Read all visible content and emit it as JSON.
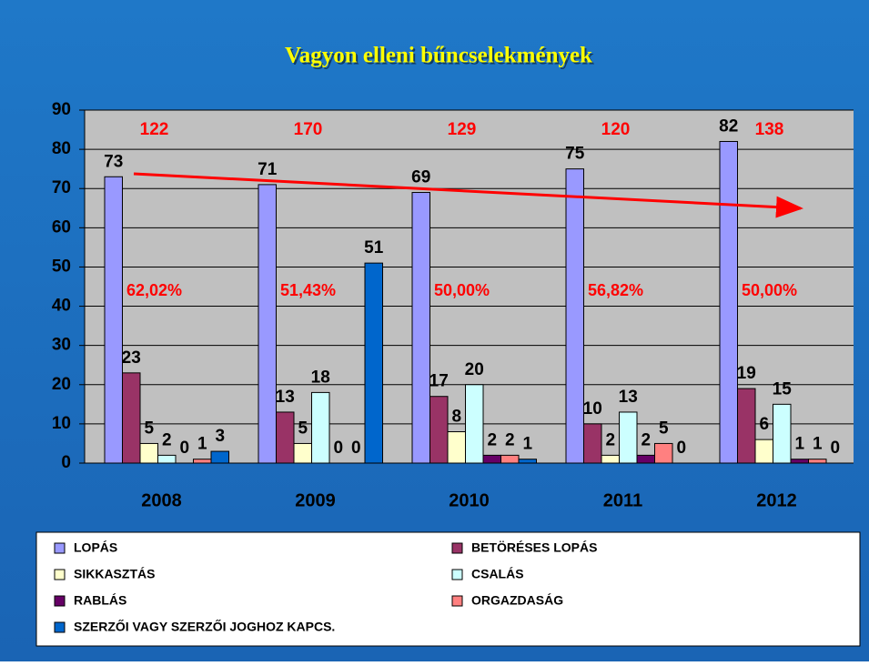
{
  "chart_data": {
    "type": "bar",
    "title": "Vagyon elleni bűncselekmények",
    "categories": [
      "2008",
      "2009",
      "2010",
      "2011",
      "2012"
    ],
    "series": [
      {
        "name": "LOPÁS",
        "color": "#9999ff",
        "values": [
          73,
          71,
          69,
          75,
          82
        ]
      },
      {
        "name": "BETÖRÉSES LOPÁS",
        "color": "#993366",
        "values": [
          23,
          13,
          17,
          10,
          19
        ]
      },
      {
        "name": "SIKKASZTÁS",
        "color": "#ffffcc",
        "values": [
          5,
          5,
          8,
          2,
          6
        ]
      },
      {
        "name": "CSALÁS",
        "color": "#ccffff",
        "values": [
          2,
          18,
          20,
          13,
          15
        ]
      },
      {
        "name": "RABLÁS",
        "color": "#660066",
        "values": [
          0,
          0,
          2,
          2,
          1
        ]
      },
      {
        "name": "ORGAZDASÁG",
        "color": "#ff8080",
        "values": [
          1,
          0,
          2,
          5,
          1
        ]
      },
      {
        "name": "SZERZŐI VAGY SZERZŐI JOGHOZ KAPCS.",
        "color": "#0066cc",
        "values": [
          3,
          51,
          1,
          0,
          0
        ]
      }
    ],
    "annotations": {
      "totals": [
        122,
        170,
        129,
        120,
        138
      ],
      "percentages": [
        "62,02%",
        "51,43%",
        "50,00%",
        "56,82%",
        "50,00%"
      ]
    },
    "ylim": [
      0,
      90
    ],
    "yticks": [
      0,
      10,
      20,
      30,
      40,
      50,
      60,
      70,
      80,
      90
    ],
    "grid": true
  }
}
